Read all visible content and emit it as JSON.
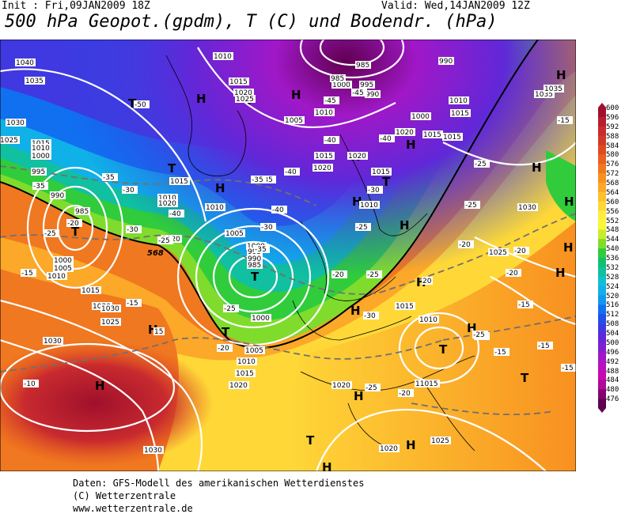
{
  "header": {
    "init": "Init : Fri,09JAN2009 18Z",
    "valid": "Valid: Wed,14JAN2009 12Z",
    "title": "500 hPa Geopot.(gpdm), T (C) und Bodendr. (hPa)"
  },
  "legend": {
    "levels": [
      "600",
      "596",
      "592",
      "588",
      "584",
      "580",
      "576",
      "572",
      "568",
      "564",
      "560",
      "556",
      "552",
      "548",
      "544",
      "540",
      "536",
      "532",
      "528",
      "524",
      "520",
      "516",
      "512",
      "508",
      "504",
      "500",
      "496",
      "492",
      "488",
      "484",
      "480",
      "476"
    ],
    "colors": [
      "#a0102c",
      "#b81c30",
      "#c82a2e",
      "#d03a28",
      "#e04a22",
      "#e86022",
      "#f07820",
      "#f89020",
      "#fca828",
      "#ffc030",
      "#ffd838",
      "#ffee40",
      "#f8f838",
      "#c8ec2c",
      "#80dc2c",
      "#30cc3c",
      "#10c070",
      "#10c0a0",
      "#10c0d0",
      "#10b0e8",
      "#1098f0",
      "#1070f0",
      "#2050e8",
      "#4038e0",
      "#6028d8",
      "#8020d0",
      "#a018c8",
      "#b810c0",
      "#c808b0",
      "#b00898",
      "#880070",
      "#600050"
    ]
  },
  "map": {
    "highs": [
      "H",
      "H",
      "H",
      "H",
      "H",
      "H",
      "H",
      "H",
      "H",
      "H",
      "H",
      "H",
      "H",
      "H",
      "H",
      "H",
      "H",
      "H",
      "H",
      "H"
    ],
    "lows": [
      "T",
      "T",
      "T",
      "T",
      "T",
      "T",
      "T",
      "T",
      "T",
      "T"
    ],
    "pressure_labels": [
      "1040",
      "1035",
      "1030",
      "1025",
      "1015",
      "1010",
      "1000",
      "995",
      "990",
      "985",
      "1000",
      "1005",
      "1010",
      "1015",
      "1020",
      "1025",
      "1030",
      "1030",
      "1010",
      "1015",
      "1020",
      "1025",
      "1015",
      "1010",
      "1005",
      "1000",
      "995",
      "990",
      "985",
      "1000",
      "1005",
      "1010",
      "1015",
      "1020",
      "1005",
      "1010",
      "1015",
      "1020",
      "1015",
      "1010",
      "1000",
      "995",
      "990",
      "985",
      "1000",
      "1010",
      "1015",
      "1035",
      "1025",
      "1035",
      "1015",
      "1010",
      "1010",
      "1020",
      "1020",
      "1015",
      "1020",
      "1030",
      "1020",
      "1015",
      "11015",
      "1020",
      "1020",
      "1025",
      "1030",
      "990",
      "985"
    ],
    "temperature_labels": [
      "-50",
      "-45",
      "-45",
      "-40",
      "-35",
      "-40",
      "-40",
      "-35",
      "-40",
      "-35",
      "-30",
      "-30",
      "-25",
      "-35",
      "-35",
      "-40",
      "-30",
      "-25",
      "-20",
      "-15",
      "-15",
      "-10",
      "-15",
      "-20",
      "-20",
      "-25",
      "-25",
      "-20",
      "-25",
      "-15",
      "-15",
      "-25",
      "-30",
      "-25",
      "-20",
      "-25",
      "-15",
      "-20",
      "-15",
      "-25",
      "-30",
      "-25",
      "-20",
      "-10",
      "15",
      "20"
    ],
    "special_label": "568"
  },
  "credits": {
    "line1": "Daten: GFS-Modell des amerikanischen Wetterdienstes",
    "line2": "(C) Wetterzentrale",
    "line3": "www.wetterzentrale.de"
  }
}
